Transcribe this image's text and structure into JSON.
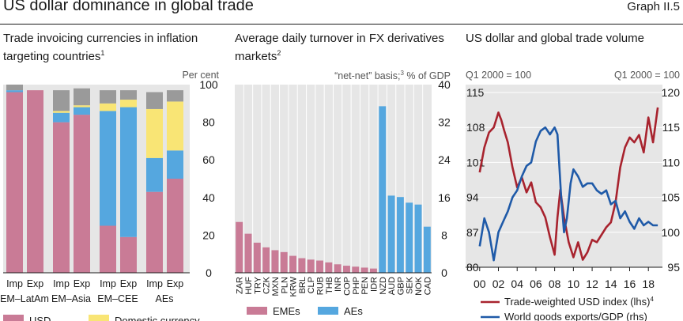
{
  "header": {
    "title": "US dollar dominance in global trade",
    "graph_number": "Graph II.5"
  },
  "chart_data": [
    {
      "type": "bar",
      "stacked": true,
      "title": "Trade invoicing currencies in inflation targeting countries",
      "title_footnote": "1",
      "unit": "Per cent",
      "ylim": [
        0,
        100
      ],
      "yticks": [
        0,
        20,
        40,
        60,
        80,
        100
      ],
      "grid": false,
      "groups": [
        {
          "label": "EM–LatAm",
          "bars": [
            {
              "label": "Imp",
              "USD": 96,
              "Euro": 1,
              "Domestic": 0,
              "Other": 3
            },
            {
              "label": "Exp",
              "USD": 97,
              "Euro": 0,
              "Domestic": 0,
              "Other": 0
            }
          ]
        },
        {
          "label": "EM–Asia",
          "bars": [
            {
              "label": "Imp",
              "USD": 80,
              "Euro": 5,
              "Domestic": 1,
              "Other": 11
            },
            {
              "label": "Exp",
              "USD": 84,
              "Euro": 4,
              "Domestic": 1,
              "Other": 9
            }
          ]
        },
        {
          "label": "EM–CEE",
          "bars": [
            {
              "label": "Imp",
              "USD": 25,
              "Euro": 61,
              "Domestic": 4,
              "Other": 7
            },
            {
              "label": "Exp",
              "USD": 19,
              "Euro": 69,
              "Domestic": 4,
              "Other": 5
            }
          ]
        },
        {
          "label": "AEs",
          "bars": [
            {
              "label": "Imp",
              "USD": 43,
              "Euro": 18,
              "Domestic": 26,
              "Other": 9
            },
            {
              "label": "Exp",
              "USD": 50,
              "Euro": 15,
              "Domestic": 26,
              "Other": 6
            }
          ]
        }
      ],
      "legend": [
        {
          "key": "USD",
          "name": "USD",
          "color": "#c97b96"
        },
        {
          "key": "Domestic",
          "name": "Domestic currency",
          "color": "#f9e575"
        }
      ],
      "colors": {
        "USD": "#c97b96",
        "Euro": "#55a7df",
        "Domestic": "#f9e575",
        "Other": "#9a9a9a"
      }
    },
    {
      "type": "bar",
      "title": "Average daily turnover in FX derivatives markets",
      "title_footnote": "2",
      "unit_prefix": "“net-net” basis;",
      "unit_footnote": "3",
      "unit_suffix": "% of GDP",
      "ylim": [
        0,
        40
      ],
      "yticks": [
        0,
        8,
        16,
        24,
        32,
        40
      ],
      "grid": true,
      "categories": [
        "ZAR",
        "HUF",
        "TRY",
        "CZK",
        "MXN",
        "PLN",
        "KRW",
        "BRL",
        "CLP",
        "RUB",
        "THB",
        "INR",
        "COP",
        "PHP",
        "PEN",
        "IDR",
        "NZD",
        "AUD",
        "GBP",
        "SEK",
        "NOK",
        "CAD"
      ],
      "values": [
        10.8,
        8.3,
        6.4,
        5.4,
        4.8,
        4.4,
        3.6,
        3.1,
        2.8,
        2.6,
        2.2,
        1.8,
        1.5,
        1.3,
        1.1,
        0.9,
        35.4,
        16.4,
        16.1,
        14.9,
        14.5,
        9.8
      ],
      "groups": [
        "EMEs",
        "EMEs",
        "EMEs",
        "EMEs",
        "EMEs",
        "EMEs",
        "EMEs",
        "EMEs",
        "EMEs",
        "EMEs",
        "EMEs",
        "EMEs",
        "EMEs",
        "EMEs",
        "EMEs",
        "EMEs",
        "AEs",
        "AEs",
        "AEs",
        "AEs",
        "AEs",
        "AEs"
      ],
      "legend": [
        {
          "name": "EMEs",
          "color": "#c97b96"
        },
        {
          "name": "AEs",
          "color": "#55a7df"
        }
      ]
    },
    {
      "type": "line",
      "title": "US dollar and global trade volume",
      "left_unit": "Q1 2000 = 100",
      "right_unit": "Q1 2000 = 100",
      "grid": true,
      "xlim": [
        1998.5,
        2019.5
      ],
      "xticks": [
        2000,
        2002,
        2004,
        2006,
        2008,
        2010,
        2012,
        2014,
        2016,
        2018
      ],
      "xtick_labels": [
        "00",
        "02",
        "04",
        "06",
        "08",
        "10",
        "12",
        "14",
        "16",
        "18"
      ],
      "ylim_left": [
        80,
        115
      ],
      "yticks_left": [
        80,
        87,
        94,
        101,
        108,
        115
      ],
      "ylim_right": [
        95,
        120
      ],
      "yticks_right": [
        95,
        100,
        105,
        110,
        115,
        120
      ],
      "series": [
        {
          "name": "Trade-weighted USD index (lhs)",
          "footnote": "4",
          "axis": "left",
          "color": "#a8232e",
          "x": [
            2000,
            2000.5,
            2001,
            2001.5,
            2002,
            2002.3,
            2002.6,
            2003,
            2003.5,
            2004,
            2004.5,
            2005,
            2005.5,
            2006,
            2006.5,
            2007,
            2007.5,
            2008,
            2008.3,
            2008.6,
            2009,
            2009.5,
            2010,
            2010.5,
            2011,
            2011.5,
            2012,
            2012.5,
            2013,
            2013.5,
            2014,
            2014.5,
            2015,
            2015.5,
            2016,
            2016.5,
            2017,
            2017.5,
            2018,
            2018.5,
            2019
          ],
          "y": [
            99,
            104,
            107,
            108,
            111,
            109.5,
            107.5,
            105,
            100,
            96,
            98,
            95,
            97,
            93,
            92,
            90,
            86,
            82.5,
            90,
            95.5,
            90,
            85,
            82,
            85,
            81.5,
            83,
            85.5,
            85,
            86.5,
            88,
            89,
            93,
            100,
            104,
            106,
            105,
            106.5,
            103,
            110,
            105,
            112
          ]
        },
        {
          "name": "World goods exports/GDP (rhs)",
          "axis": "right",
          "color": "#1f5aa8",
          "x": [
            2000,
            2000.5,
            2001,
            2001.5,
            2002,
            2002.5,
            2003,
            2003.5,
            2004,
            2004.5,
            2005,
            2005.5,
            2006,
            2006.5,
            2007,
            2007.5,
            2008,
            2008.3,
            2008.7,
            2009,
            2009.3,
            2009.7,
            2010,
            2010.5,
            2011,
            2011.5,
            2012,
            2012.5,
            2013,
            2013.5,
            2014,
            2014.5,
            2015,
            2015.5,
            2016,
            2016.5,
            2017,
            2017.5,
            2018,
            2018.5,
            2019
          ],
          "y": [
            98,
            102,
            100,
            96,
            100,
            101.5,
            103,
            105,
            106,
            108,
            109.5,
            110,
            113,
            114.5,
            115,
            114,
            115,
            114,
            105,
            100,
            102,
            107,
            109,
            108,
            106.5,
            107,
            107,
            106,
            105.5,
            106,
            104,
            104.5,
            102,
            103,
            101.5,
            100.5,
            102,
            101,
            101.5,
            101,
            101
          ]
        }
      ]
    }
  ]
}
